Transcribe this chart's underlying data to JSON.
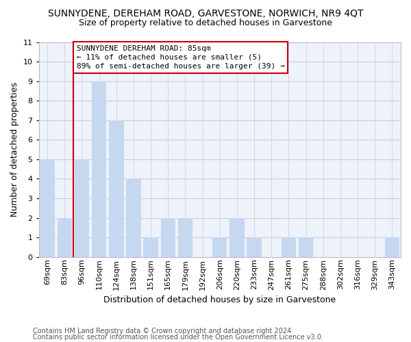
{
  "title": "SUNNYDENE, DEREHAM ROAD, GARVESTONE, NORWICH, NR9 4QT",
  "subtitle": "Size of property relative to detached houses in Garvestone",
  "xlabel": "Distribution of detached houses by size in Garvestone",
  "ylabel": "Number of detached properties",
  "footnote1": "Contains HM Land Registry data © Crown copyright and database right 2024.",
  "footnote2": "Contains public sector information licensed under the Open Government Licence v3.0.",
  "categories": [
    "69sqm",
    "83sqm",
    "96sqm",
    "110sqm",
    "124sqm",
    "138sqm",
    "151sqm",
    "165sqm",
    "179sqm",
    "192sqm",
    "206sqm",
    "220sqm",
    "233sqm",
    "247sqm",
    "261sqm",
    "275sqm",
    "288sqm",
    "302sqm",
    "316sqm",
    "329sqm",
    "343sqm"
  ],
  "values": [
    5,
    2,
    5,
    9,
    7,
    4,
    1,
    2,
    2,
    0,
    1,
    2,
    1,
    0,
    1,
    1,
    0,
    0,
    0,
    0,
    1
  ],
  "bar_color": "#c5d8f0",
  "highlight_index": 1,
  "highlight_color": "#c5d8f0",
  "annotation_box_text": "SUNNYDENE DEREHAM ROAD: 85sqm\n← 11% of detached houses are smaller (5)\n89% of semi-detached houses are larger (39) →",
  "annotation_box_color": "#cc0000",
  "annotation_box_fill": "#ffffff",
  "property_line_x": 1.5,
  "ylim": [
    0,
    11
  ],
  "yticks": [
    0,
    1,
    2,
    3,
    4,
    5,
    6,
    7,
    8,
    9,
    10,
    11
  ],
  "grid_color": "#ccccdd",
  "bg_color": "#eef2fa",
  "title_fontsize": 10,
  "subtitle_fontsize": 9,
  "annot_fontsize": 8,
  "axis_label_fontsize": 9,
  "tick_fontsize": 8,
  "footnote_fontsize": 7
}
